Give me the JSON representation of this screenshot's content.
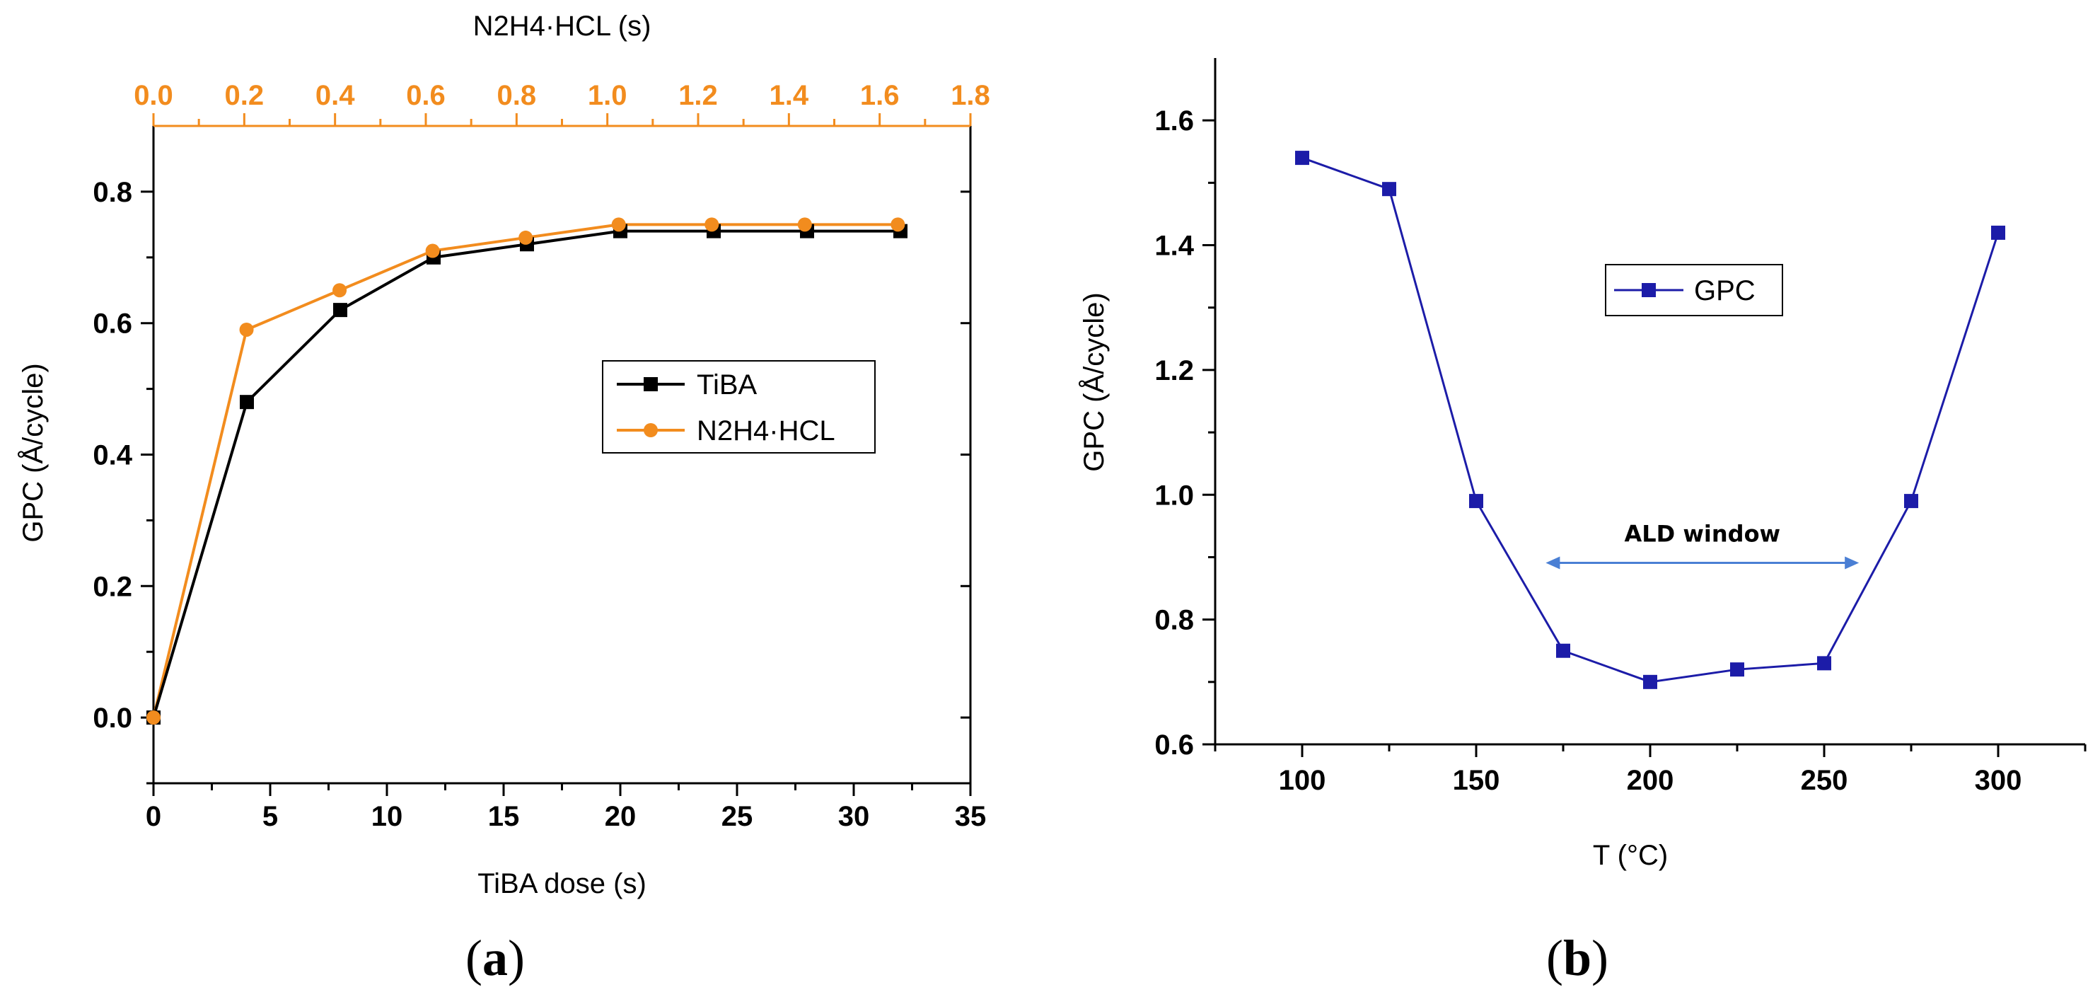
{
  "chart_data": [
    {
      "type": "line",
      "panel_label": "(a)",
      "panel_letter": "a",
      "xlabel": "TiBA dose (s)",
      "x2label": "N2H4·HCL (s)",
      "ylabel": "GPC (Å/cycle)",
      "xlim": [
        0,
        35
      ],
      "x2lim": [
        0.0,
        1.8
      ],
      "ylim": [
        -0.1,
        0.9
      ],
      "xticks": [
        0,
        5,
        10,
        15,
        20,
        25,
        30,
        35
      ],
      "x2ticks": [
        "0.0",
        "0.2",
        "0.4",
        "0.6",
        "0.8",
        "1.0",
        "1.2",
        "1.4",
        "1.6",
        "1.8"
      ],
      "yticks": [
        "0.0",
        "0.2",
        "0.4",
        "0.6",
        "0.8"
      ],
      "legend_position": "center-right",
      "series": [
        {
          "name": "TiBA",
          "color": "#000000",
          "marker": "square",
          "axis": "bottom",
          "x": [
            0,
            4,
            8,
            12,
            16,
            20,
            24,
            28,
            32
          ],
          "y": [
            0.0,
            0.48,
            0.62,
            0.7,
            0.72,
            0.74,
            0.74,
            0.74,
            0.74
          ]
        },
        {
          "name": "N2H4·HCL",
          "color": "#f28c1e",
          "marker": "circle",
          "axis": "top",
          "x": [
            0.0,
            0.205,
            0.41,
            0.615,
            0.82,
            1.025,
            1.23,
            1.435,
            1.64
          ],
          "y": [
            0.0,
            0.59,
            0.65,
            0.71,
            0.73,
            0.75,
            0.75,
            0.75,
            0.75
          ]
        }
      ]
    },
    {
      "type": "line",
      "panel_label": "(b)",
      "panel_letter": "b",
      "xlabel": "T (°C)",
      "ylabel": "GPC (Å/cycle)",
      "xlim": [
        75,
        325
      ],
      "ylim": [
        0.6,
        1.7
      ],
      "xticks": [
        100,
        150,
        200,
        250,
        300
      ],
      "yticks": [
        "0.6",
        "0.8",
        "1.0",
        "1.2",
        "1.4",
        "1.6"
      ],
      "legend_position": "center",
      "annotation": {
        "text": "ALD window",
        "from_x": 170,
        "to_x": 260,
        "y": 0.9
      },
      "series": [
        {
          "name": "GPC",
          "color": "#1c1ca8",
          "marker": "square",
          "x": [
            100,
            125,
            150,
            175,
            200,
            225,
            250,
            275,
            300
          ],
          "y": [
            1.54,
            1.49,
            0.99,
            0.75,
            0.7,
            0.72,
            0.73,
            0.99,
            1.42
          ]
        }
      ]
    }
  ]
}
